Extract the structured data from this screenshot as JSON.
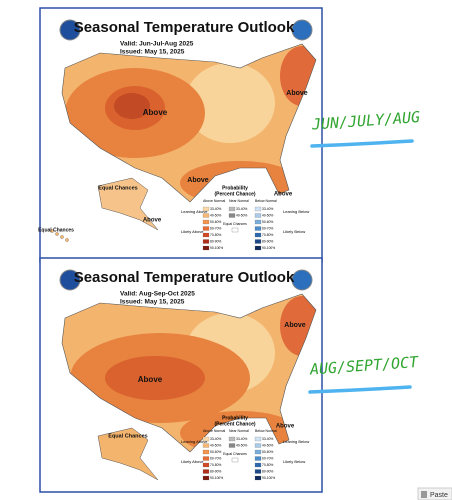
{
  "panels": [
    {
      "title": "Seasonal Temperature Outlook",
      "valid": "Valid:  Jun-Jul-Aug 2025",
      "issued": "Issued:  May 15, 2025",
      "labels": [
        "Above",
        "Above",
        "Above",
        "Above",
        "Equal Chances",
        "Above",
        "Equal Chances"
      ]
    },
    {
      "title": "Seasonal Temperature Outlook",
      "valid": "Valid:  Aug-Sep-Oct 2025",
      "issued": "Issued:  May 15, 2025",
      "labels": [
        "Above",
        "Above",
        "Above",
        "Equal Chances"
      ]
    }
  ],
  "legend": {
    "title": "Probability",
    "subtitle": "(Percent Chance)",
    "headers": [
      "Above Normal",
      "Near Normal",
      "Below Normal"
    ],
    "bins": [
      "33-40%",
      "40-50%",
      "50-60%",
      "60-70%",
      "70-80%",
      "80-90%",
      "90-100%"
    ],
    "near_bins": [
      "33-40%",
      "40-50%"
    ],
    "equal": "Equal Chances",
    "sides": [
      "Leaning Above",
      "Likely Above",
      "Leaning Below",
      "Likely Below"
    ]
  },
  "annotations": [
    "JUN/JULY/AUG",
    "AUG/SEPT/OCT"
  ],
  "paste": "Paste"
}
